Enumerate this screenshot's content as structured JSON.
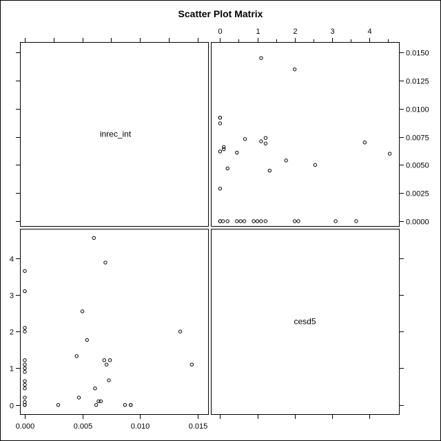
{
  "chart_data": {
    "type": "scatter",
    "title": "Scatter Plot Matrix",
    "variables": [
      {
        "name": "inrec_int",
        "range": [
          0,
          0.0155
        ],
        "ticks": [
          "0.000",
          "0.005",
          "0.010",
          "0.015"
        ],
        "tick_values": [
          0,
          0.005,
          0.01,
          0.015
        ],
        "minor_tick_step": 0.0025,
        "inner_ticks": [
          "0.0000",
          "0.0025",
          "0.0050",
          "0.0075",
          "0.0100",
          "0.0125",
          "0.0150"
        ],
        "inner_tick_values": [
          0,
          0.0025,
          0.005,
          0.0075,
          0.01,
          0.0125,
          0.015
        ]
      },
      {
        "name": "cesd5",
        "range": [
          -0.1,
          4.65
        ],
        "ticks": [
          "0",
          "1",
          "2",
          "3",
          "4"
        ],
        "tick_values": [
          0,
          1,
          2,
          3,
          4
        ],
        "minor_tick_step": 0.5
      }
    ],
    "points": [
      [
        0,
        0
      ],
      [
        0,
        0
      ],
      [
        0,
        0.08
      ],
      [
        0,
        0.2
      ],
      [
        0,
        0.45
      ],
      [
        0,
        0.55
      ],
      [
        0,
        0.65
      ],
      [
        0,
        0.9
      ],
      [
        0,
        1.0
      ],
      [
        0,
        1.1
      ],
      [
        0,
        1.22
      ],
      [
        0,
        2.0
      ],
      [
        0,
        2.1
      ],
      [
        0,
        3.1
      ],
      [
        0,
        3.65
      ],
      [
        0.0029,
        0
      ],
      [
        0.0047,
        0.2
      ],
      [
        0.0045,
        1.33
      ],
      [
        0.005,
        2.55
      ],
      [
        0.0054,
        1.77
      ],
      [
        0.006,
        4.55
      ],
      [
        0.0061,
        0.45
      ],
      [
        0.0062,
        0
      ],
      [
        0.0064,
        0.1
      ],
      [
        0.0066,
        0.1
      ],
      [
        0.0069,
        1.22
      ],
      [
        0.007,
        3.88
      ],
      [
        0.0071,
        1.1
      ],
      [
        0.0073,
        0.67
      ],
      [
        0.0074,
        1.22
      ],
      [
        0.0087,
        0
      ],
      [
        0.0092,
        0
      ],
      [
        0.0092,
        0
      ],
      [
        0.0135,
        2.0
      ],
      [
        0.0145,
        1.1
      ]
    ]
  }
}
